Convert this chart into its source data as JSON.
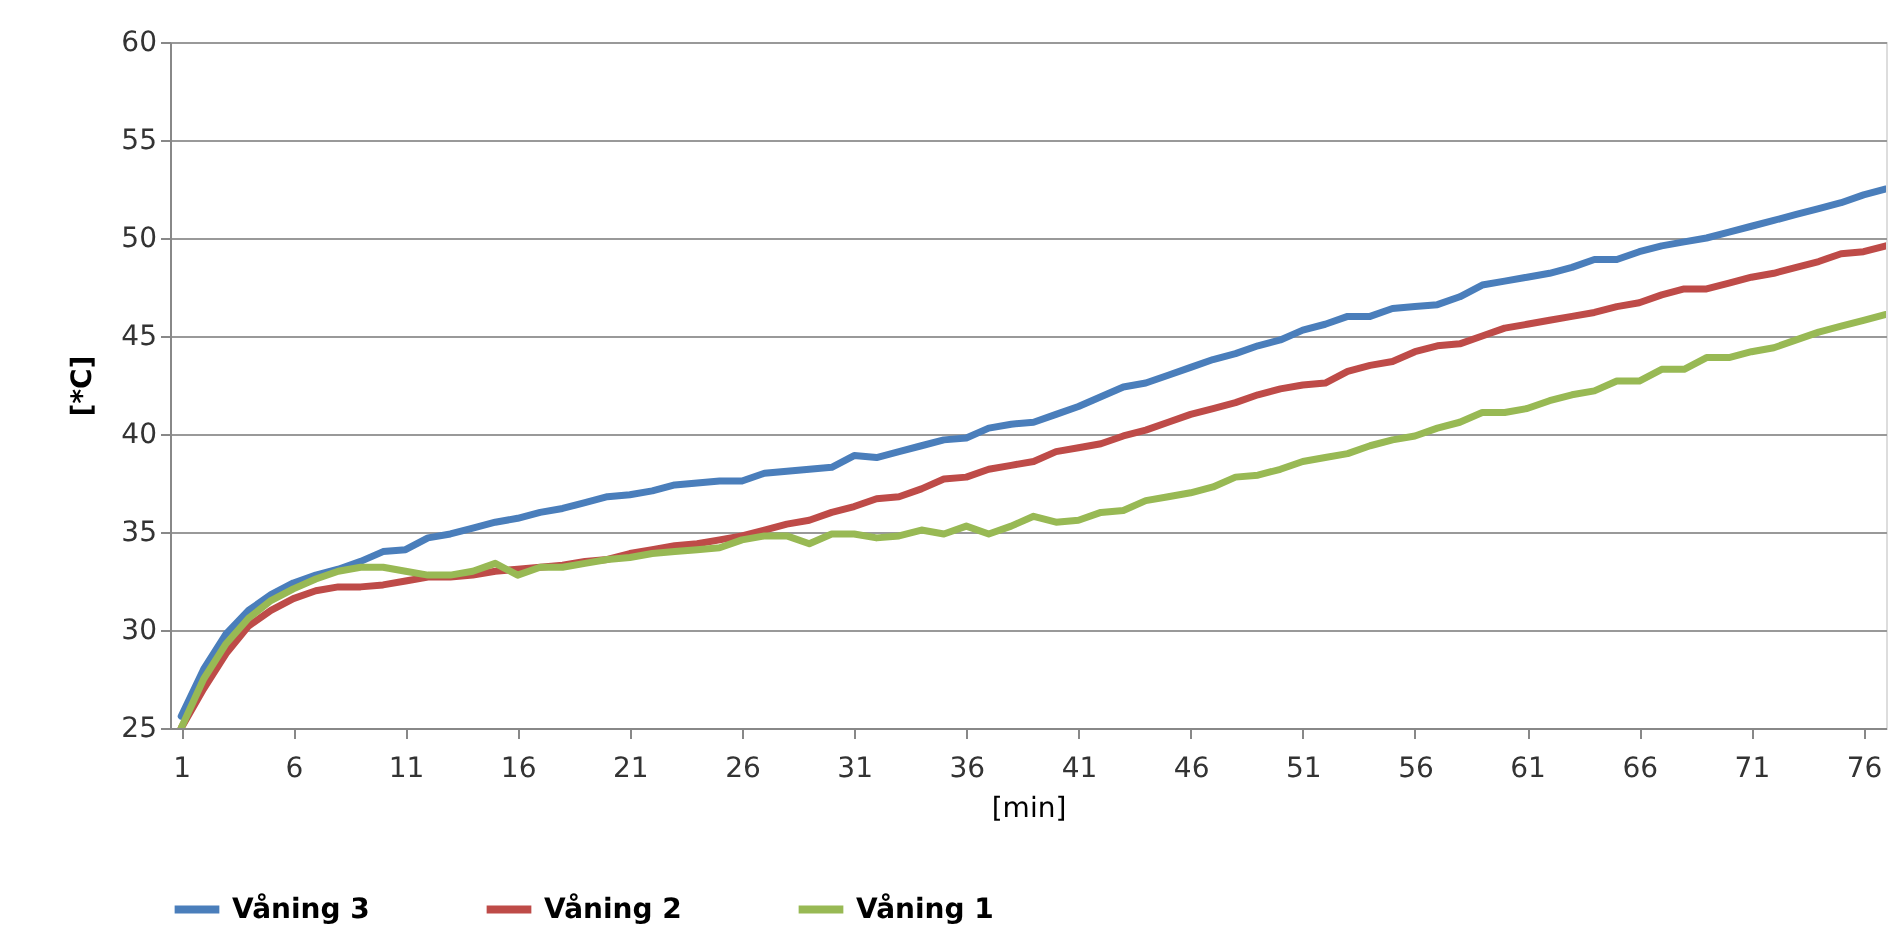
{
  "chart_data": {
    "type": "line",
    "xlabel": "[min]",
    "ylabel": "[*C]",
    "x": [
      1,
      2,
      3,
      4,
      5,
      6,
      7,
      8,
      9,
      10,
      11,
      12,
      13,
      14,
      15,
      16,
      17,
      18,
      19,
      20,
      21,
      22,
      23,
      24,
      25,
      26,
      27,
      28,
      29,
      30,
      31,
      32,
      33,
      34,
      35,
      36,
      37,
      38,
      39,
      40,
      41,
      42,
      43,
      44,
      45,
      46,
      47,
      48,
      49,
      50,
      51,
      52,
      53,
      54,
      55,
      56,
      57,
      58,
      59,
      60,
      61,
      62,
      63,
      64,
      65,
      66,
      67,
      68,
      69,
      70,
      71,
      72,
      73,
      74,
      75,
      76,
      77
    ],
    "xlim": [
      0.5,
      77
    ],
    "xticks": [
      1,
      6,
      11,
      16,
      21,
      26,
      31,
      36,
      41,
      46,
      51,
      56,
      61,
      66,
      71,
      76
    ],
    "ylim": [
      25,
      60
    ],
    "yticks": [
      25,
      30,
      35,
      40,
      45,
      50,
      55,
      60
    ],
    "grid": "y",
    "legend": "bottom",
    "line_style": "solid",
    "marker": "none",
    "series": [
      {
        "name": "Våning 3",
        "color": "#4a7ebb",
        "values": [
          25.6,
          28,
          29.8,
          31,
          31.8,
          32.4,
          32.8,
          33.1,
          33.5,
          34,
          34.1,
          34.7,
          34.9,
          35.2,
          35.5,
          35.7,
          36,
          36.2,
          36.5,
          36.8,
          36.9,
          37.1,
          37.4,
          37.5,
          37.6,
          37.6,
          38,
          38.1,
          38.2,
          38.3,
          38.9,
          38.8,
          39.1,
          39.4,
          39.7,
          39.8,
          40.3,
          40.5,
          40.6,
          41,
          41.4,
          41.9,
          42.4,
          42.6,
          43,
          43.4,
          43.8,
          44.1,
          44.5,
          44.8,
          45.3,
          45.6,
          46,
          46,
          46.4,
          46.5,
          46.6,
          47,
          47.6,
          47.8,
          48,
          48.2,
          48.5,
          48.9,
          48.9,
          49.3,
          49.6,
          49.8,
          50,
          50.3,
          50.6,
          50.9,
          51.2,
          51.5,
          51.8,
          52.2,
          52.5
        ]
      },
      {
        "name": "Våning 2",
        "color": "#be4b48",
        "values": [
          25,
          27,
          28.8,
          30.2,
          31,
          31.6,
          32,
          32.2,
          32.2,
          32.3,
          32.5,
          32.7,
          32.7,
          32.8,
          33,
          33.1,
          33.2,
          33.3,
          33.5,
          33.6,
          33.9,
          34.1,
          34.3,
          34.4,
          34.6,
          34.8,
          35.1,
          35.4,
          35.6,
          36,
          36.3,
          36.7,
          36.8,
          37.2,
          37.7,
          37.8,
          38.2,
          38.4,
          38.6,
          39.1,
          39.3,
          39.5,
          39.9,
          40.2,
          40.6,
          41,
          41.3,
          41.6,
          42,
          42.3,
          42.5,
          42.6,
          43.2,
          43.5,
          43.7,
          44.2,
          44.5,
          44.6,
          45,
          45.4,
          45.6,
          45.8,
          46,
          46.2,
          46.5,
          46.7,
          47.1,
          47.4,
          47.4,
          47.7,
          48,
          48.2,
          48.5,
          48.8,
          49.2,
          49.3,
          49.6
        ]
      },
      {
        "name": "Våning 1",
        "color": "#98b954",
        "values": [
          25,
          27.5,
          29.3,
          30.6,
          31.5,
          32.1,
          32.6,
          33,
          33.2,
          33.2,
          33,
          32.8,
          32.8,
          33,
          33.4,
          32.8,
          33.2,
          33.2,
          33.4,
          33.6,
          33.7,
          33.9,
          34,
          34.1,
          34.2,
          34.6,
          34.8,
          34.8,
          34.4,
          34.9,
          34.9,
          34.7,
          34.8,
          35.1,
          34.9,
          35.3,
          34.9,
          35.3,
          35.8,
          35.5,
          35.6,
          36,
          36.1,
          36.6,
          36.8,
          37,
          37.3,
          37.8,
          37.9,
          38.2,
          38.6,
          38.8,
          39,
          39.4,
          39.7,
          39.9,
          40.3,
          40.6,
          41.1,
          41.1,
          41.3,
          41.7,
          42,
          42.2,
          42.7,
          42.7,
          43.3,
          43.3,
          43.9,
          43.9,
          44.2,
          44.4,
          44.8,
          45.2,
          45.5,
          45.8,
          46.1
        ]
      }
    ]
  }
}
